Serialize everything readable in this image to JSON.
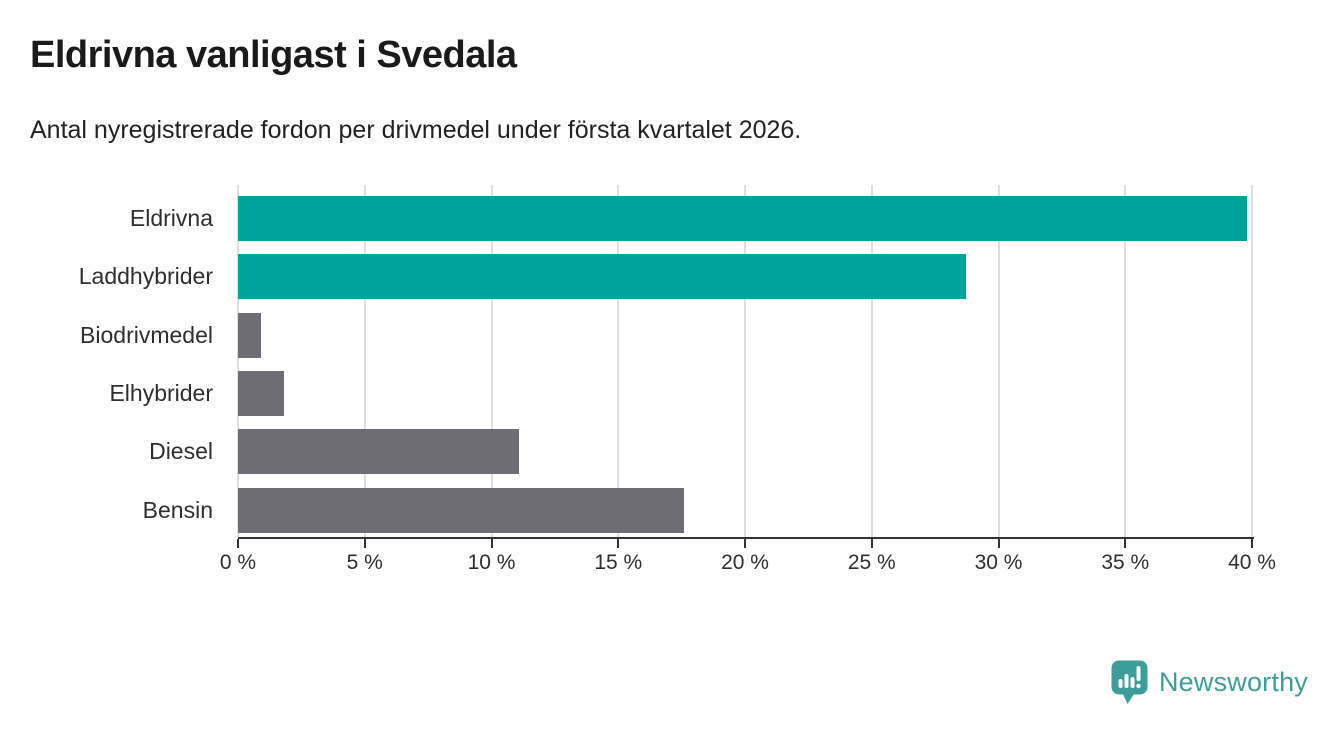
{
  "header": {
    "title": "Eldrivna vanligast i Svedala",
    "subtitle": "Antal nyregistrerade fordon per drivmedel under första kvartalet 2026."
  },
  "chart_data": {
    "type": "bar",
    "orientation": "horizontal",
    "title": "Eldrivna vanligast i Svedala",
    "subtitle": "Antal nyregistrerade fordon per drivmedel under första kvartalet 2026.",
    "categories": [
      "Eldrivna",
      "Laddhybrider",
      "Biodrivmedel",
      "Elhybrider",
      "Diesel",
      "Bensin"
    ],
    "values": [
      39.8,
      28.7,
      0.9,
      1.8,
      11.1,
      17.6
    ],
    "unit": "%",
    "xlim": [
      0,
      40
    ],
    "x_tick_values": [
      0,
      5,
      10,
      15,
      20,
      25,
      30,
      35,
      40
    ],
    "x_tick_labels": [
      "0 %",
      "5 %",
      "10 %",
      "15 %",
      "20 %",
      "25 %",
      "30 %",
      "35 %",
      "40 %"
    ],
    "grid": true,
    "legend": false,
    "bar_colors": [
      "#00a39b",
      "#00a39b",
      "#6d6d73",
      "#6d6d73",
      "#6d6d73",
      "#6d6d73"
    ],
    "colors": {
      "highlight_teal": "#00a39b",
      "neutral_gray": "#6d6d73",
      "gridline": "#dedede",
      "axis": "#333333",
      "text": "#2e2e2e"
    }
  },
  "branding": {
    "logo_text": "Newsworthy",
    "logo_color": "#3d9e99",
    "logo_icon": "speech-bubble-bar-chart-exclamation"
  }
}
